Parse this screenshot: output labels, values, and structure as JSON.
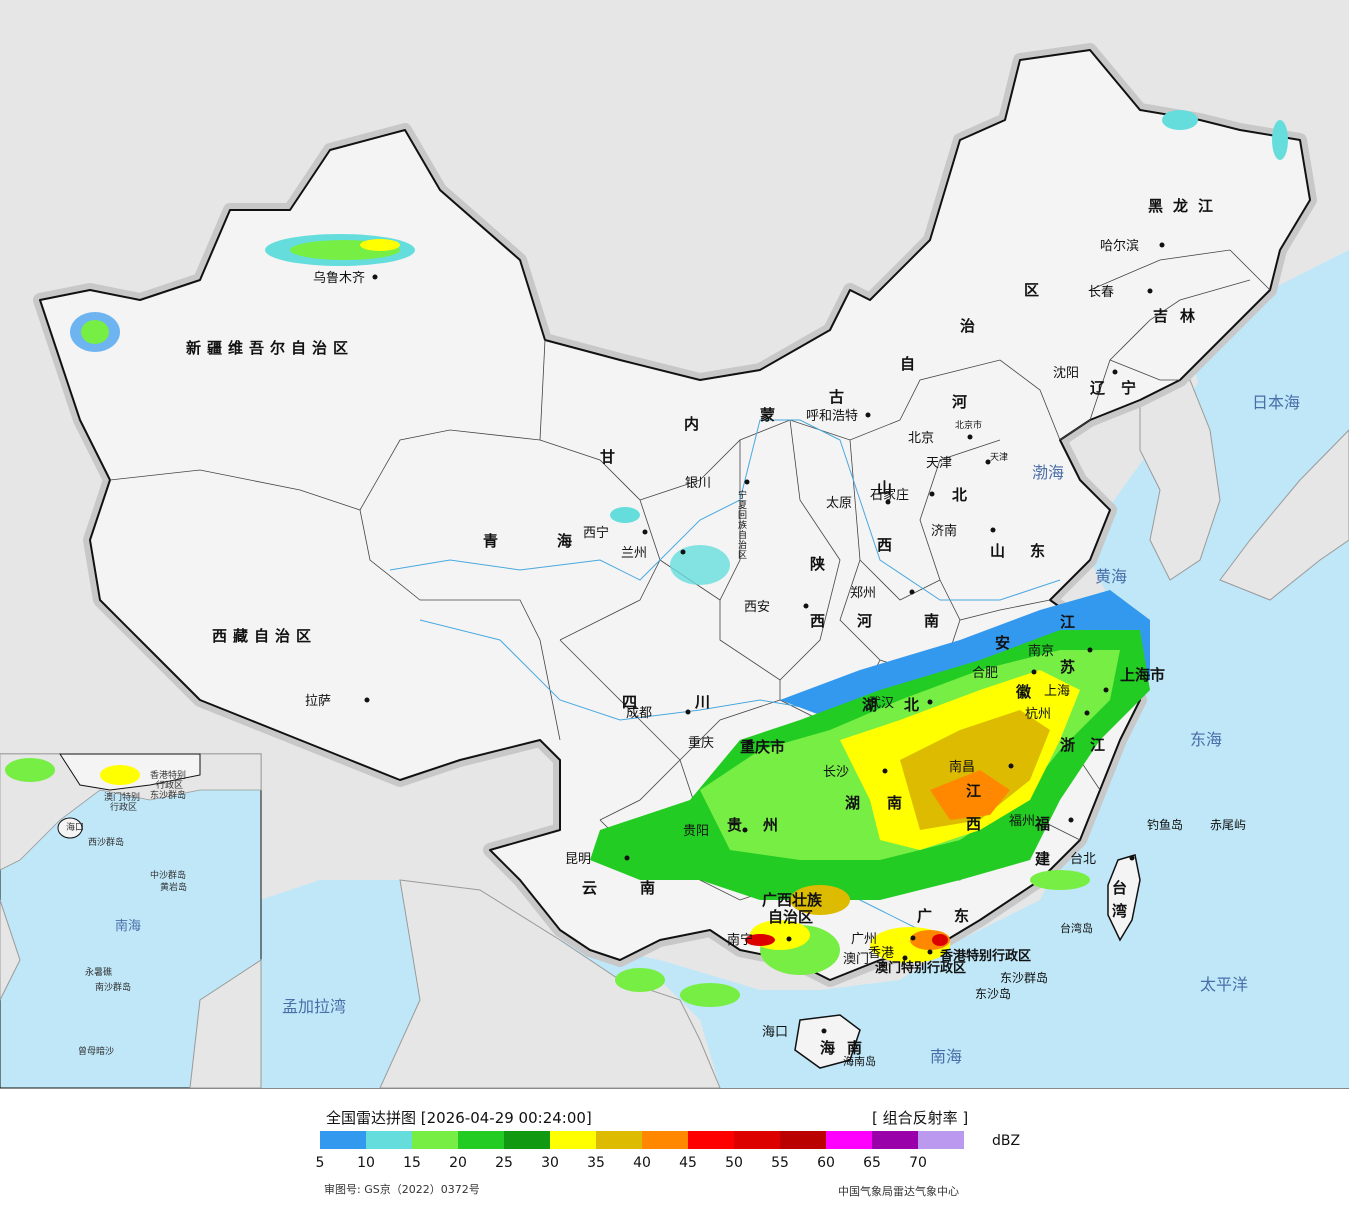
{
  "map": {
    "seas": [
      "日本海",
      "渤海",
      "黄海",
      "东海",
      "太平洋",
      "南海",
      "孟加拉湾"
    ],
    "inset_sea": "南海",
    "provinces": {
      "heilongjiang": "黑龙江",
      "jilin": "吉林",
      "liaoning": "辽宁",
      "neimenggu": [
        "内",
        "蒙",
        "古",
        "自",
        "治",
        "区"
      ],
      "xinjiang": "新疆维吾尔自治区",
      "xizang": "西藏自治区",
      "qinghai": [
        "青",
        "海"
      ],
      "gansu": "甘",
      "sichuan": [
        "四",
        "川"
      ],
      "yunnan": [
        "云",
        "南"
      ],
      "guizhou": [
        "贵",
        "州"
      ],
      "shaanxi": [
        "陕",
        "西"
      ],
      "shanxi": [
        "山",
        "西"
      ],
      "hebei": [
        "河",
        "北"
      ],
      "henan": [
        "河",
        "南"
      ],
      "shandong": [
        "山",
        "东"
      ],
      "hubei": [
        "湖",
        "北"
      ],
      "hunan": [
        "湖",
        "南"
      ],
      "jiangxi": [
        "江",
        "西"
      ],
      "anhui": [
        "安",
        "徽"
      ],
      "jiangsu": [
        "江",
        "苏"
      ],
      "zhejiang": [
        "浙",
        "江"
      ],
      "fujian": [
        "福",
        "建"
      ],
      "guangdong": [
        "广",
        "东"
      ],
      "guangxi": [
        "广西壮族",
        "自治区"
      ],
      "hainan": "海南",
      "hainan_island": "海南岛",
      "taiwan": [
        "台",
        "湾"
      ],
      "taiwan_island": "台湾岛",
      "ningxia": [
        "宁",
        "夏",
        "回",
        "族",
        "自",
        "治",
        "区"
      ],
      "chongqing": "重庆市",
      "shanghai": "上海市",
      "beijing_label": "北京市",
      "tianjin_label": "天津",
      "hongkong": "香港特别行政区",
      "macau": "澳门特别行政区"
    },
    "cities": [
      "乌鲁木齐",
      "拉萨",
      "西宁",
      "兰州",
      "银川",
      "呼和浩特",
      "北京",
      "天津",
      "石家庄",
      "太原",
      "济南",
      "郑州",
      "西安",
      "成都",
      "重庆",
      "贵阳",
      "昆明",
      "南宁",
      "广州",
      "香港",
      "澳门",
      "海口",
      "长沙",
      "武汉",
      "合肥",
      "南京",
      "上海",
      "杭州",
      "南昌",
      "福州",
      "台北",
      "哈尔滨",
      "长春",
      "沈阳"
    ],
    "islands": [
      "钓鱼岛",
      "赤尾屿",
      "东沙群岛",
      "东沙岛"
    ],
    "inset_labels": [
      "中沙群岛",
      "黄岩岛",
      "永暑礁",
      "南沙群岛",
      "曾母暗沙",
      "海口",
      "东沙群岛",
      "西沙群岛",
      "澳门特别",
      "行政区",
      "香港特别",
      "行政区"
    ]
  },
  "legend": {
    "title": "全国雷达拼图 [2026-04-29 00:24:00]",
    "product": "[ 组合反射率 ]",
    "unit": "dBZ",
    "ticks": [
      "5",
      "10",
      "15",
      "20",
      "25",
      "30",
      "35",
      "40",
      "45",
      "50",
      "55",
      "60",
      "65",
      "70"
    ],
    "colors": [
      "#3399ee",
      "#66dddd",
      "#77ee44",
      "#22cc22",
      "#119911",
      "#ffff00",
      "#ddbb00",
      "#ff8800",
      "#ff0000",
      "#dd0000",
      "#bb0000",
      "#ff00ff",
      "#9900aa",
      "#bb99ee"
    ],
    "review": "审图号: GS京（2022）0372号",
    "source": "中国气象局雷达气象中心"
  }
}
